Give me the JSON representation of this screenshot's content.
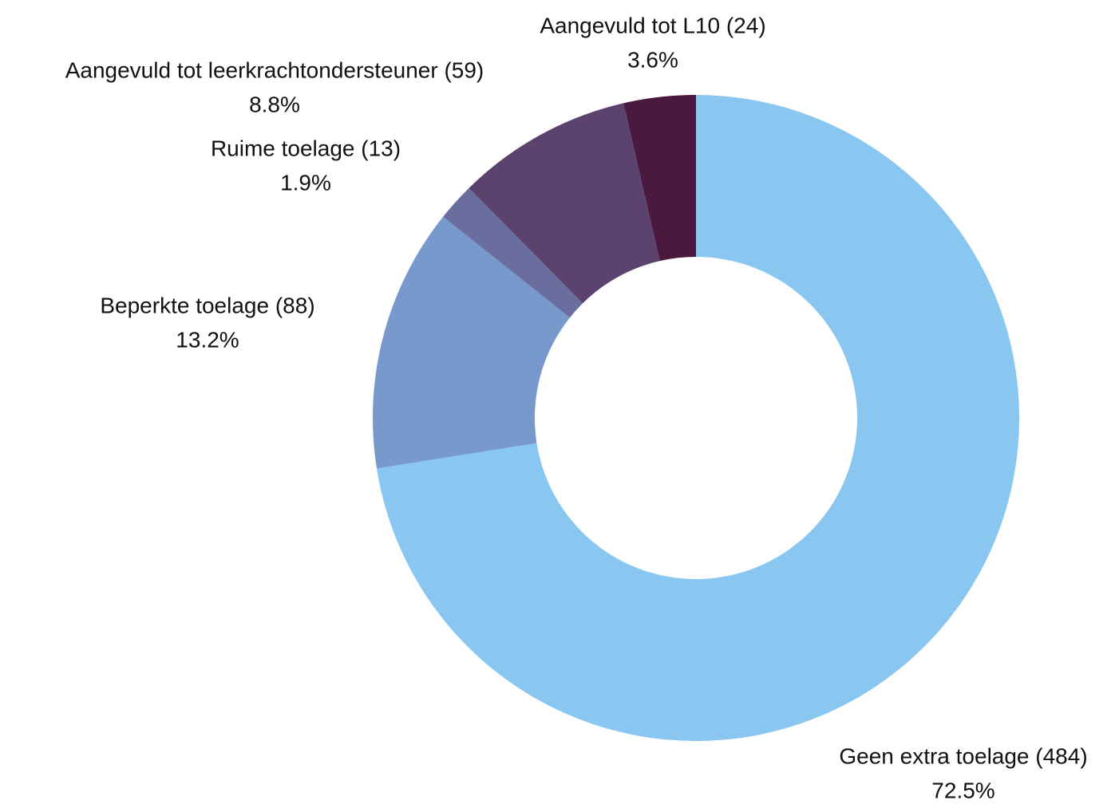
{
  "chart_data": {
    "type": "donut",
    "categories": [
      "Geen extra toelage (484)",
      "Beperkte toelage (88)",
      "Ruime toelage (13)",
      "Aangevuld tot leerkrachtondersteuner (59)",
      "Aangevuld tot L10 (24)"
    ],
    "values": [
      72.5,
      13.2,
      1.9,
      8.8,
      3.6
    ],
    "value_labels": [
      "72.5%",
      "13.2%",
      "1.9%",
      "8.8%",
      "3.6%"
    ],
    "colors": [
      "#89c7f0",
      "#7799cc",
      "#6a6e9e",
      "#5c426e",
      "#4a1a3e"
    ]
  }
}
